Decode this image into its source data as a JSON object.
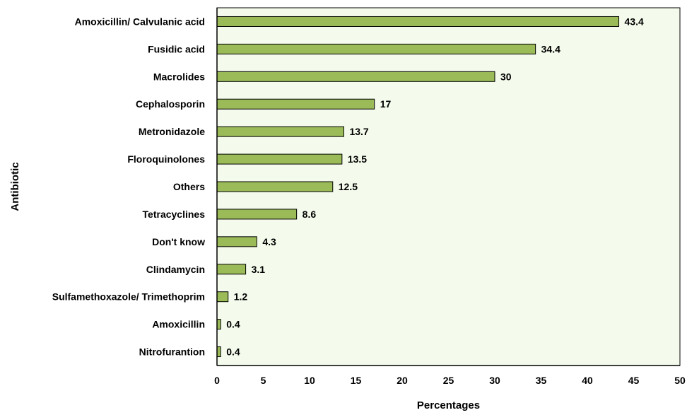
{
  "chart_data": {
    "type": "bar",
    "orientation": "horizontal",
    "title": "",
    "xlabel": "Percentages",
    "ylabel": "Antibiotic",
    "xlim": [
      0,
      50
    ],
    "x_ticks": [
      0,
      5,
      10,
      15,
      20,
      25,
      30,
      35,
      40,
      45,
      50
    ],
    "grid": false,
    "legend": "none",
    "data_labels": true,
    "categories": [
      "Amoxicillin/ Calvulanic acid",
      "Fusidic acid",
      "Macrolides",
      "Cephalosporin",
      "Metronidazole",
      "Floroquinolones",
      "Others",
      "Tetracyclines",
      "Don't know",
      "Clindamycin",
      "Sulfamethoxazole/ Trimethoprim",
      "Amoxicillin",
      "Nitrofurantion"
    ],
    "values": [
      43.4,
      34.4,
      30,
      17,
      13.7,
      13.5,
      12.5,
      8.6,
      4.3,
      3.1,
      1.2,
      0.4,
      0.4
    ],
    "colors": {
      "bar_fill": "#9bbb59",
      "bar_stroke": "#000000",
      "plot_background": "#f4fbec",
      "axis": "#000000"
    }
  }
}
